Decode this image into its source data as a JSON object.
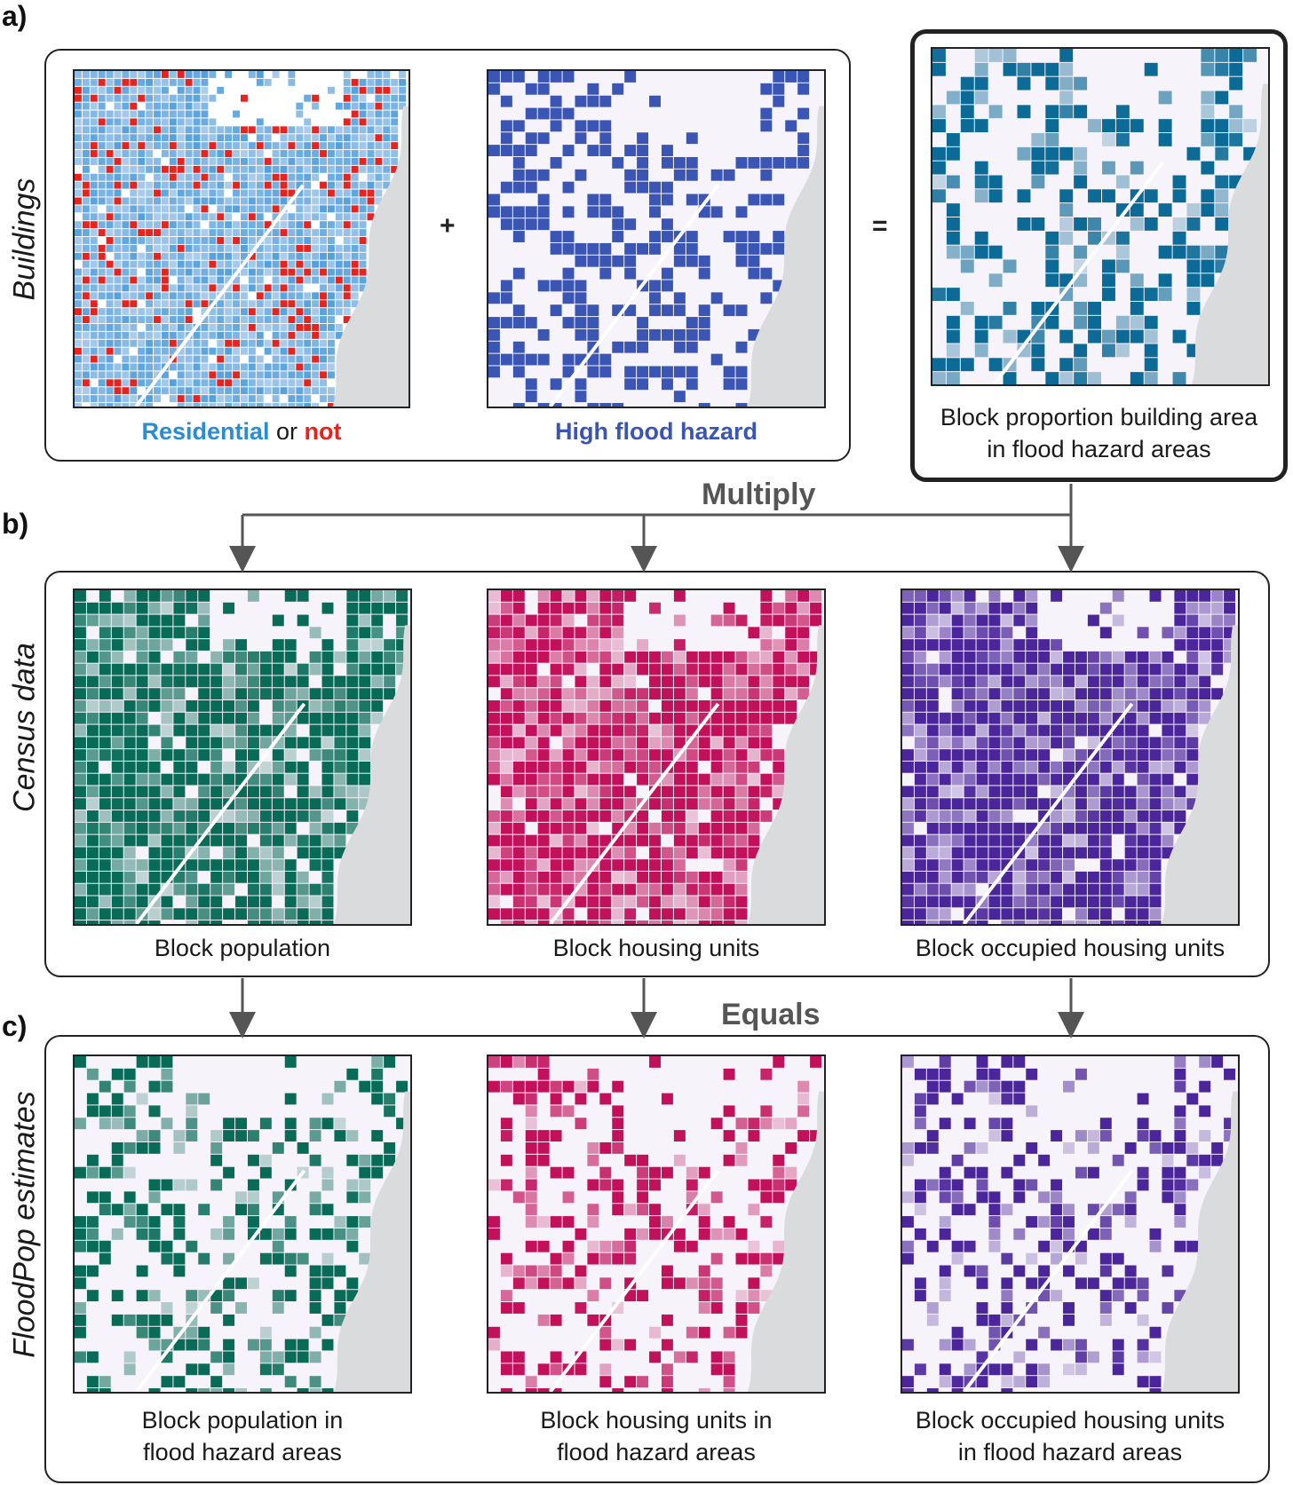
{
  "panels": {
    "a": {
      "letter": "a)",
      "row_label": "Buildings"
    },
    "b": {
      "letter": "b)",
      "row_label": "Census data"
    },
    "c": {
      "letter": "c)",
      "row_label": "FloodPop estimates"
    }
  },
  "operators": {
    "plus": "+",
    "equals": "="
  },
  "flow": {
    "multiply": "Multiply",
    "equals": "Equals"
  },
  "captions": {
    "a1": {
      "residential": "Residential",
      "or": " or ",
      "not": "not"
    },
    "a2": "High flood hazard",
    "a3": {
      "line1": "Block proportion building area",
      "line2": "in flood hazard areas"
    },
    "b1": "Block population",
    "b2": "Block housing units",
    "b3": "Block occupied housing units",
    "c1": {
      "line1": "Block population in",
      "line2": "flood hazard areas"
    },
    "c2": {
      "line1": "Block housing units in",
      "line2": "flood hazard areas"
    },
    "c3": {
      "line1": "Block occupied housing units",
      "line2": "in flood hazard areas"
    }
  },
  "colors": {
    "residential": "#2b8cd6",
    "not_residential": "#e52420",
    "flood": "#3a55b4",
    "proportion": "#0b6a96",
    "population": "#076b57",
    "housing": "#c2105a",
    "occupied": "#4b259a",
    "water": "#dadbdd"
  }
}
